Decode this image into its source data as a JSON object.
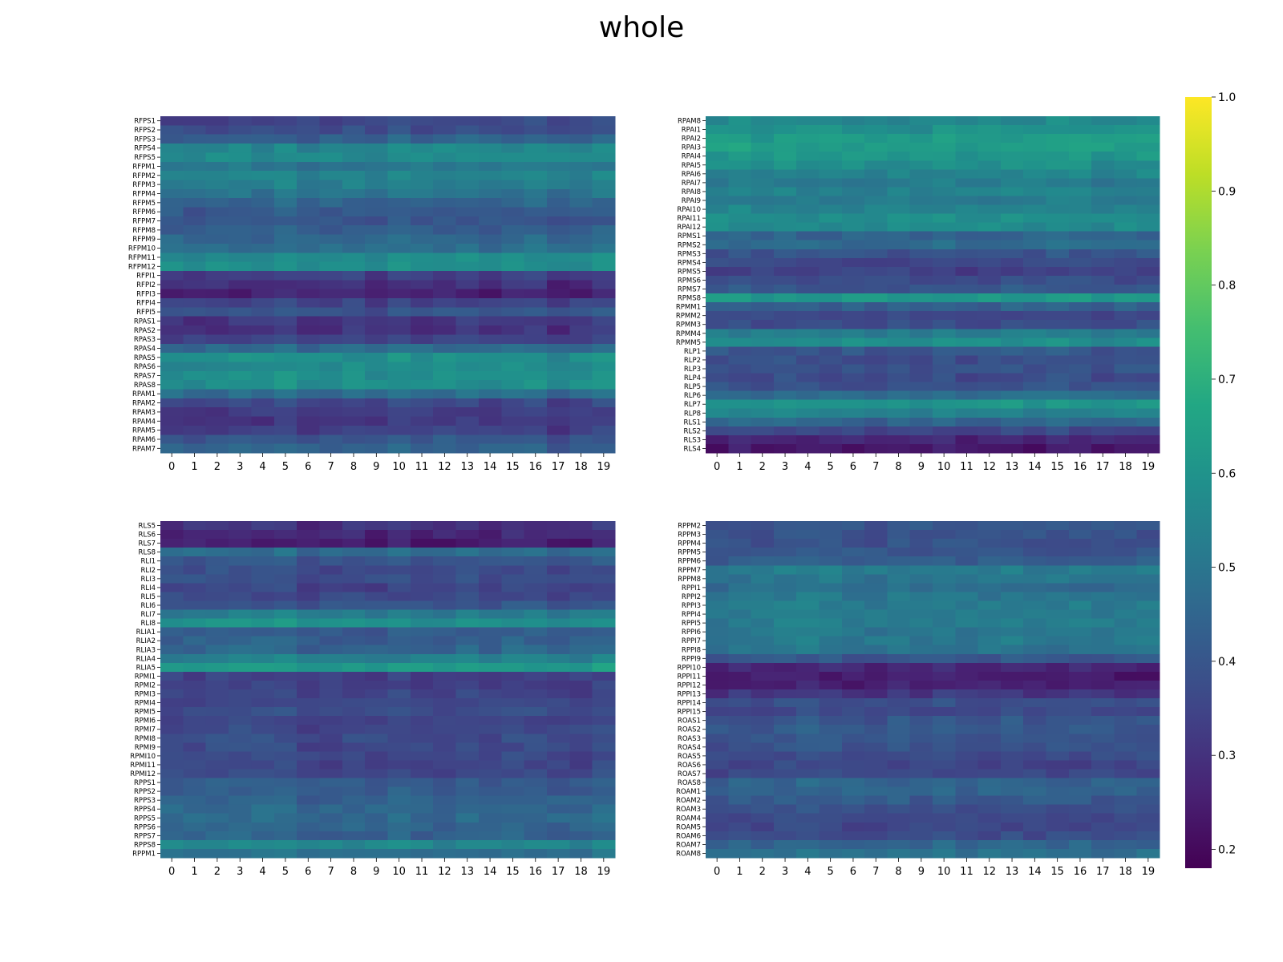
{
  "title": "whole",
  "chart_data": [
    {
      "type": "heatmap",
      "x": [
        0,
        1,
        2,
        3,
        4,
        5,
        6,
        7,
        8,
        9,
        10,
        11,
        12,
        13,
        14,
        15,
        16,
        17,
        18,
        19
      ],
      "rows": [
        "RFPS1",
        "RFPS2",
        "RFPS3",
        "RFPS4",
        "RFPS5",
        "RFPM1",
        "RFPM2",
        "RFPM3",
        "RFPM4",
        "RFPM5",
        "RFPM6",
        "RFPM7",
        "RFPM8",
        "RFPM9",
        "RFPM10",
        "RFPM11",
        "RFPM12",
        "RFPI1",
        "RFPI2",
        "RFPI3",
        "RFPI4",
        "RFPI5",
        "RPAS1",
        "RPAS2",
        "RPAS3",
        "RPAS4",
        "RPAS5",
        "RPAS6",
        "RPAS7",
        "RPAS8",
        "RPAM1",
        "RPAM2",
        "RPAM3",
        "RPAM4",
        "RPAM5",
        "RPAM6",
        "RPAM7"
      ],
      "row_base": [
        0.35,
        0.37,
        0.43,
        0.55,
        0.57,
        0.5,
        0.54,
        0.53,
        0.49,
        0.44,
        0.41,
        0.39,
        0.42,
        0.45,
        0.47,
        0.56,
        0.58,
        0.33,
        0.29,
        0.25,
        0.34,
        0.39,
        0.31,
        0.3,
        0.34,
        0.46,
        0.58,
        0.57,
        0.58,
        0.58,
        0.47,
        0.35,
        0.32,
        0.31,
        0.33,
        0.4,
        0.43
      ],
      "col_offset": [
        0.0,
        -0.01,
        0.0,
        0.01,
        0.0,
        0.02,
        -0.01,
        0.0,
        0.01,
        -0.01,
        0.02,
        0.0,
        0.01,
        0.02,
        0.0,
        0.01,
        0.02,
        -0.02,
        0.0,
        0.02
      ],
      "vmin": 0.18,
      "vmax": 1.0
    },
    {
      "type": "heatmap",
      "x": [
        0,
        1,
        2,
        3,
        4,
        5,
        6,
        7,
        8,
        9,
        10,
        11,
        12,
        13,
        14,
        15,
        16,
        17,
        18,
        19
      ],
      "rows": [
        "RPAM8",
        "RPAI1",
        "RPAI2",
        "RPAI3",
        "RPAI4",
        "RPAI5",
        "RPAI6",
        "RPAI7",
        "RPAI8",
        "RPAI9",
        "RPAI10",
        "RPAI11",
        "RPAI12",
        "RPMS1",
        "RPMS2",
        "RPMS3",
        "RPMS4",
        "RPMS5",
        "RPMS6",
        "RPMS7",
        "RPMS8",
        "RPMM1",
        "RPMM2",
        "RPMM3",
        "RPMM4",
        "RPMM5",
        "RLP1",
        "RLP2",
        "RLP3",
        "RLP4",
        "RLP5",
        "RLP6",
        "RLP7",
        "RLP8",
        "RLS1",
        "RLS2",
        "RLS3",
        "RLS4"
      ],
      "row_base": [
        0.56,
        0.59,
        0.62,
        0.64,
        0.61,
        0.58,
        0.55,
        0.52,
        0.54,
        0.52,
        0.55,
        0.58,
        0.57,
        0.44,
        0.46,
        0.39,
        0.36,
        0.34,
        0.37,
        0.4,
        0.62,
        0.43,
        0.36,
        0.37,
        0.52,
        0.58,
        0.4,
        0.38,
        0.39,
        0.37,
        0.39,
        0.47,
        0.6,
        0.54,
        0.44,
        0.35,
        0.27,
        0.23
      ],
      "col_offset": [
        0.0,
        0.01,
        0.0,
        0.01,
        0.0,
        0.0,
        0.0,
        -0.01,
        0.0,
        -0.01,
        0.01,
        -0.01,
        0.0,
        0.01,
        0.0,
        0.02,
        0.01,
        -0.01,
        0.0,
        0.01
      ],
      "vmin": 0.18,
      "vmax": 1.0
    },
    {
      "type": "heatmap",
      "x": [
        0,
        1,
        2,
        3,
        4,
        5,
        6,
        7,
        8,
        9,
        10,
        11,
        12,
        13,
        14,
        15,
        16,
        17,
        18,
        19
      ],
      "rows": [
        "RLS5",
        "RLS6",
        "RLS7",
        "RLS8",
        "RLI1",
        "RLI2",
        "RLI3",
        "RLI4",
        "RLI5",
        "RLI6",
        "RLI7",
        "RLI8",
        "RLIA1",
        "RLIA2",
        "RLIA3",
        "RLIA4",
        "RLIA5",
        "RPMI1",
        "RPMI2",
        "RPMI3",
        "RPMI4",
        "RPMI5",
        "RPMI6",
        "RPMI7",
        "RPMI8",
        "RPMI9",
        "RPMI10",
        "RPMI11",
        "RPMI12",
        "RPPS1",
        "RPPS2",
        "RPPS3",
        "RPPS4",
        "RPPS5",
        "RPPS6",
        "RPPS7",
        "RPPS8",
        "RPPM1"
      ],
      "row_base": [
        0.3,
        0.27,
        0.25,
        0.47,
        0.4,
        0.37,
        0.38,
        0.35,
        0.36,
        0.4,
        0.52,
        0.59,
        0.42,
        0.43,
        0.45,
        0.53,
        0.62,
        0.34,
        0.34,
        0.35,
        0.36,
        0.37,
        0.35,
        0.36,
        0.37,
        0.36,
        0.36,
        0.35,
        0.36,
        0.42,
        0.42,
        0.44,
        0.46,
        0.46,
        0.45,
        0.44,
        0.56,
        0.47
      ],
      "col_offset": [
        0.0,
        0.0,
        0.01,
        0.02,
        0.01,
        0.02,
        -0.02,
        -0.01,
        0.0,
        -0.01,
        0.01,
        -0.01,
        -0.01,
        0.01,
        -0.01,
        0.01,
        0.01,
        -0.01,
        -0.01,
        0.02
      ],
      "vmin": 0.18,
      "vmax": 1.0
    },
    {
      "type": "heatmap",
      "x": [
        0,
        1,
        2,
        3,
        4,
        5,
        6,
        7,
        8,
        9,
        10,
        11,
        12,
        13,
        14,
        15,
        16,
        17,
        18,
        19
      ],
      "rows": [
        "RPPM2",
        "RPPM3",
        "RPPM4",
        "RPPM5",
        "RPPM6",
        "RPPM7",
        "RPPM8",
        "RPPI1",
        "RPPI2",
        "RPPI3",
        "RPPI4",
        "RPPI5",
        "RPPI6",
        "RPPI7",
        "RPPI8",
        "RPPI9",
        "RPPI10",
        "RPPI11",
        "RPPI12",
        "RPPI13",
        "RPPI14",
        "RPPI15",
        "ROAS1",
        "ROAS2",
        "ROAS3",
        "ROAS4",
        "ROAS5",
        "ROAS6",
        "ROAS7",
        "ROAS8",
        "ROAM1",
        "ROAM2",
        "ROAM3",
        "ROAM4",
        "ROAM5",
        "ROAM6",
        "ROAM7",
        "ROAM8"
      ],
      "row_base": [
        0.4,
        0.39,
        0.39,
        0.4,
        0.42,
        0.52,
        0.5,
        0.47,
        0.5,
        0.52,
        0.52,
        0.52,
        0.5,
        0.51,
        0.49,
        0.4,
        0.27,
        0.24,
        0.25,
        0.31,
        0.38,
        0.36,
        0.4,
        0.41,
        0.4,
        0.39,
        0.37,
        0.35,
        0.36,
        0.44,
        0.44,
        0.41,
        0.38,
        0.36,
        0.35,
        0.37,
        0.45,
        0.48
      ],
      "col_offset": [
        -0.01,
        0.0,
        0.0,
        0.01,
        0.02,
        0.01,
        0.0,
        -0.01,
        0.01,
        0.0,
        0.01,
        0.0,
        0.0,
        0.01,
        0.0,
        0.0,
        0.0,
        -0.01,
        0.0,
        0.0
      ],
      "vmin": 0.18,
      "vmax": 1.0
    }
  ],
  "colorbar": {
    "colormap": "viridis",
    "ticks": [
      0.2,
      0.3,
      0.4,
      0.5,
      0.6,
      0.7,
      0.8,
      0.9,
      1.0
    ],
    "tick_labels": [
      "0.2",
      "0.3",
      "0.4",
      "0.5",
      "0.6",
      "0.7",
      "0.8",
      "0.9",
      "1.0"
    ]
  }
}
